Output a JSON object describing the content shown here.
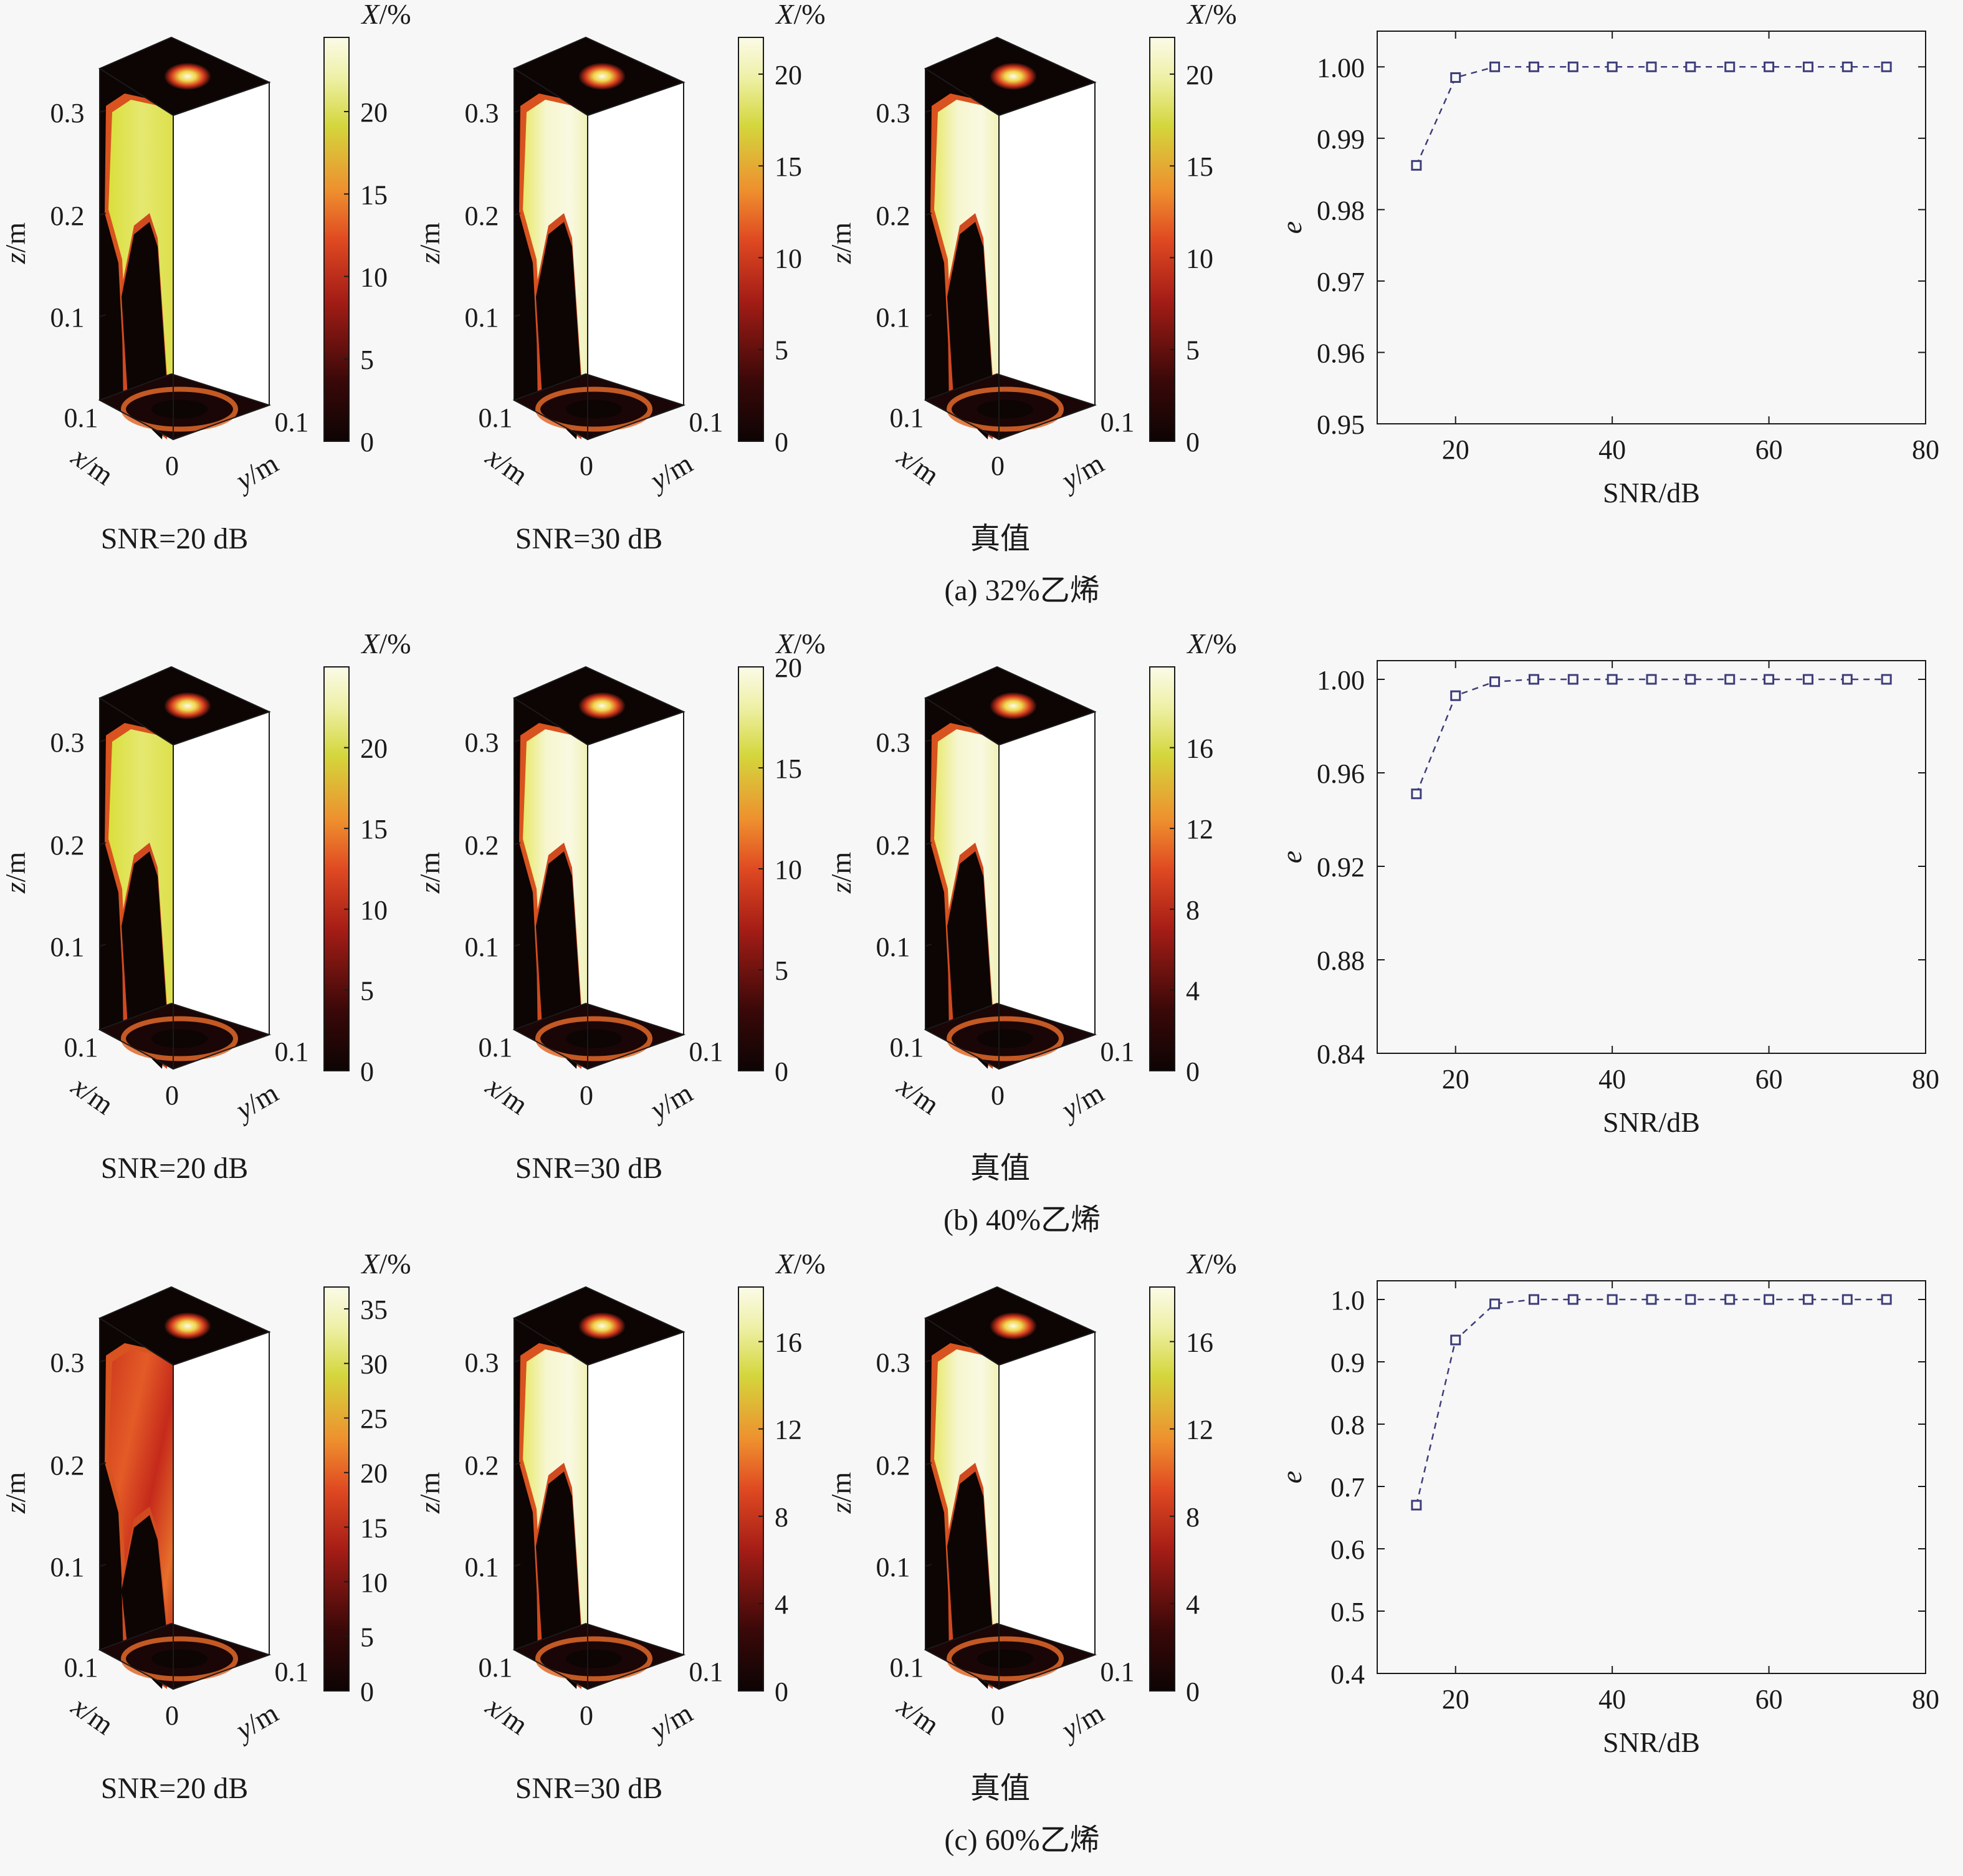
{
  "rows": [
    {
      "caption": "(a) 32%乙烯",
      "volumes": [
        {
          "caption": "SNR=20 dB",
          "cbar_label": "X/%",
          "cbar_ticks": [
            "0",
            "5",
            "10",
            "15",
            "20"
          ],
          "cbar_max": 24.5,
          "variant": "noisy20"
        },
        {
          "caption": "SNR=30 dB",
          "cbar_label": "X/%",
          "cbar_ticks": [
            "0",
            "5",
            "10",
            "15",
            "20"
          ],
          "cbar_max": 22,
          "variant": "clean"
        },
        {
          "caption": "真值",
          "cbar_label": "X/%",
          "cbar_ticks": [
            "0",
            "5",
            "10",
            "15",
            "20"
          ],
          "cbar_max": 22,
          "variant": "clean"
        }
      ]
    },
    {
      "caption": "(b) 40%乙烯",
      "volumes": [
        {
          "caption": "SNR=20 dB",
          "cbar_label": "X/%",
          "cbar_ticks": [
            "0",
            "5",
            "10",
            "15",
            "20"
          ],
          "cbar_max": 25,
          "variant": "noisy20"
        },
        {
          "caption": "SNR=30 dB",
          "cbar_label": "X/%",
          "cbar_ticks": [
            "0",
            "5",
            "10",
            "15",
            "20"
          ],
          "cbar_max": 20,
          "variant": "clean"
        },
        {
          "caption": "真值",
          "cbar_label": "X/%",
          "cbar_ticks": [
            "0",
            "4",
            "8",
            "12",
            "16"
          ],
          "cbar_max": 20,
          "variant": "clean"
        }
      ]
    },
    {
      "caption": "(c) 60%乙烯",
      "volumes": [
        {
          "caption": "SNR=20 dB",
          "cbar_label": "X/%",
          "cbar_ticks": [
            "0",
            "5",
            "10",
            "15",
            "20",
            "25",
            "30",
            "35"
          ],
          "cbar_max": 37,
          "variant": "noisyred"
        },
        {
          "caption": "SNR=30 dB",
          "cbar_label": "X/%",
          "cbar_ticks": [
            "0",
            "4",
            "8",
            "12",
            "16"
          ],
          "cbar_max": 18.5,
          "variant": "clean"
        },
        {
          "caption": "真值",
          "cbar_label": "X/%",
          "cbar_ticks": [
            "0",
            "4",
            "8",
            "12",
            "16"
          ],
          "cbar_max": 18.5,
          "variant": "clean"
        }
      ]
    }
  ],
  "volume_axes": {
    "z_label": "z/m",
    "x_label": "x/m",
    "y_label": "y/m",
    "z_ticks": [
      "0.1",
      "0.2",
      "0.3"
    ],
    "x_tick": "0.1",
    "y_tick": "0.1",
    "origin_tick": "0"
  },
  "chart_data": [
    {
      "type": "line",
      "title": "",
      "xlabel": "SNR/dB",
      "ylabel": "e",
      "xlim": [
        10,
        80
      ],
      "ylim": [
        0.95,
        1.005
      ],
      "xticks": [
        "20",
        "40",
        "60",
        "80"
      ],
      "yticks": [
        "0.95",
        "0.96",
        "0.97",
        "0.98",
        "0.99",
        "1.00"
      ],
      "series": [
        {
          "x": [
            15,
            20,
            25,
            30,
            35,
            40,
            45,
            50,
            55,
            60,
            65,
            70,
            75
          ],
          "y": [
            0.9862,
            0.9985,
            1.0,
            1.0,
            1.0,
            1.0,
            1.0,
            1.0,
            1.0,
            1.0,
            1.0,
            1.0,
            1.0
          ]
        }
      ],
      "line_style": "dashed",
      "marker": "square",
      "color": "#3d3d7a"
    },
    {
      "type": "line",
      "title": "",
      "xlabel": "SNR/dB",
      "ylabel": "e",
      "xlim": [
        10,
        80
      ],
      "ylim": [
        0.84,
        1.008
      ],
      "xticks": [
        "20",
        "40",
        "60",
        "80"
      ],
      "yticks": [
        "0.84",
        "0.88",
        "0.92",
        "0.96",
        "1.00"
      ],
      "series": [
        {
          "x": [
            15,
            20,
            25,
            30,
            35,
            40,
            45,
            50,
            55,
            60,
            65,
            70,
            75
          ],
          "y": [
            0.951,
            0.993,
            0.999,
            1.0,
            1.0,
            1.0,
            1.0,
            1.0,
            1.0,
            1.0,
            1.0,
            1.0,
            1.0
          ]
        }
      ],
      "line_style": "dashed",
      "marker": "square",
      "color": "#3d3d7a"
    },
    {
      "type": "line",
      "title": "",
      "xlabel": "SNR/dB",
      "ylabel": "e",
      "xlim": [
        10,
        80
      ],
      "ylim": [
        0.4,
        1.03
      ],
      "xticks": [
        "20",
        "40",
        "60",
        "80"
      ],
      "yticks": [
        "0.4",
        "0.5",
        "0.6",
        "0.7",
        "0.8",
        "0.9",
        "1.0"
      ],
      "series": [
        {
          "x": [
            15,
            20,
            25,
            30,
            35,
            40,
            45,
            50,
            55,
            60,
            65,
            70,
            75
          ],
          "y": [
            0.67,
            0.935,
            0.993,
            1.0,
            1.0,
            1.0,
            1.0,
            1.0,
            1.0,
            1.0,
            1.0,
            1.0,
            1.0
          ]
        }
      ],
      "line_style": "dashed",
      "marker": "square",
      "color": "#3d3d7a"
    }
  ],
  "colors": {
    "heat_0": "#0d0404",
    "heat_1": "#5a0d0d",
    "heat_2": "#c7281e",
    "heat_3": "#ec7a2a",
    "heat_4": "#d6d83e",
    "heat_5": "#f1f2b8",
    "heat_6": "#fbfbe6",
    "line": "#3d3d7a",
    "background": "#f7f7f7"
  }
}
